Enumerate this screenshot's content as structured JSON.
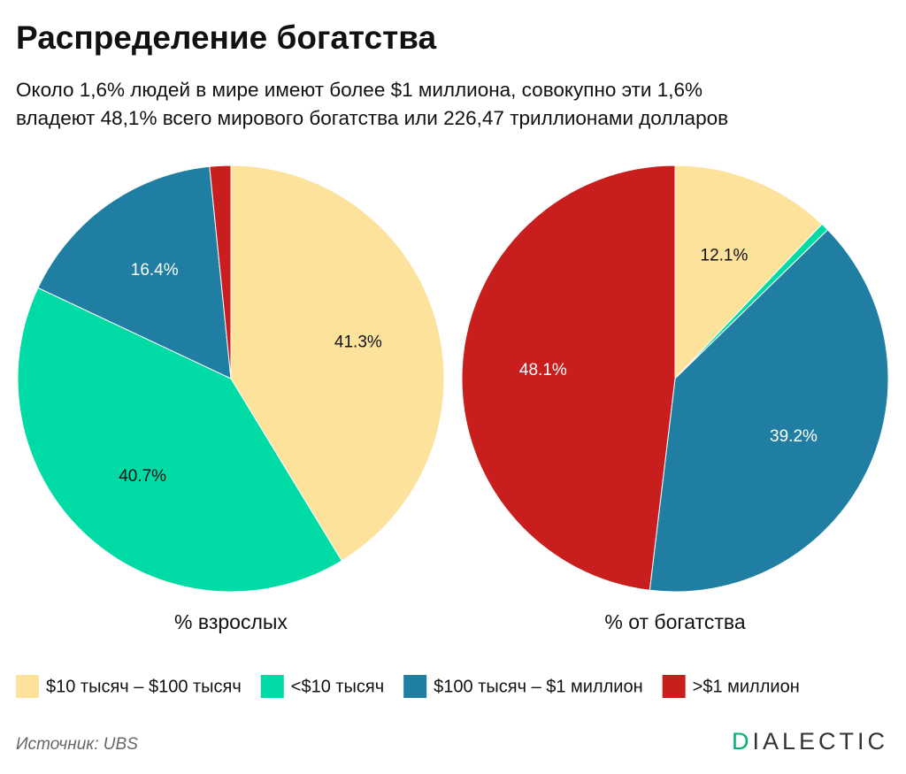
{
  "title": "Распределение богатства",
  "subtitle": [
    "Около 1,6% людей в мире имеют более $1 миллиона, совокупно эти 1,6%",
    "владеют 48,1% всего мирового богатства или 226,47 триллионами долларов"
  ],
  "source": "Источник: UBS",
  "brand": "DIALECTIC",
  "chart_data": [
    {
      "type": "pie",
      "title": "% взрослых",
      "categories": [
        "$10 тысяч – $100 тысяч",
        "<$10 тысяч",
        "$100 тысяч – $1 миллион",
        ">$1 миллион"
      ],
      "colors": [
        "#fde29c",
        "#00dba5",
        "#1f7ea1",
        "#c81e1e"
      ],
      "values": [
        41.3,
        40.7,
        16.4,
        1.6
      ],
      "value_labels": [
        "41.3%",
        "40.7%",
        "16.4%",
        null
      ]
    },
    {
      "type": "pie",
      "title": "% от богатства",
      "categories": [
        "$10 тысяч – $100 тысяч",
        "<$10 тысяч",
        "$100 тысяч – $1 миллион",
        ">$1 миллион"
      ],
      "colors": [
        "#fde29c",
        "#00dba5",
        "#1f7ea1",
        "#c81e1e"
      ],
      "values": [
        12.1,
        0.6,
        39.2,
        48.1
      ],
      "value_labels": [
        "12.1%",
        null,
        "39.2%",
        "48.1%"
      ]
    }
  ]
}
